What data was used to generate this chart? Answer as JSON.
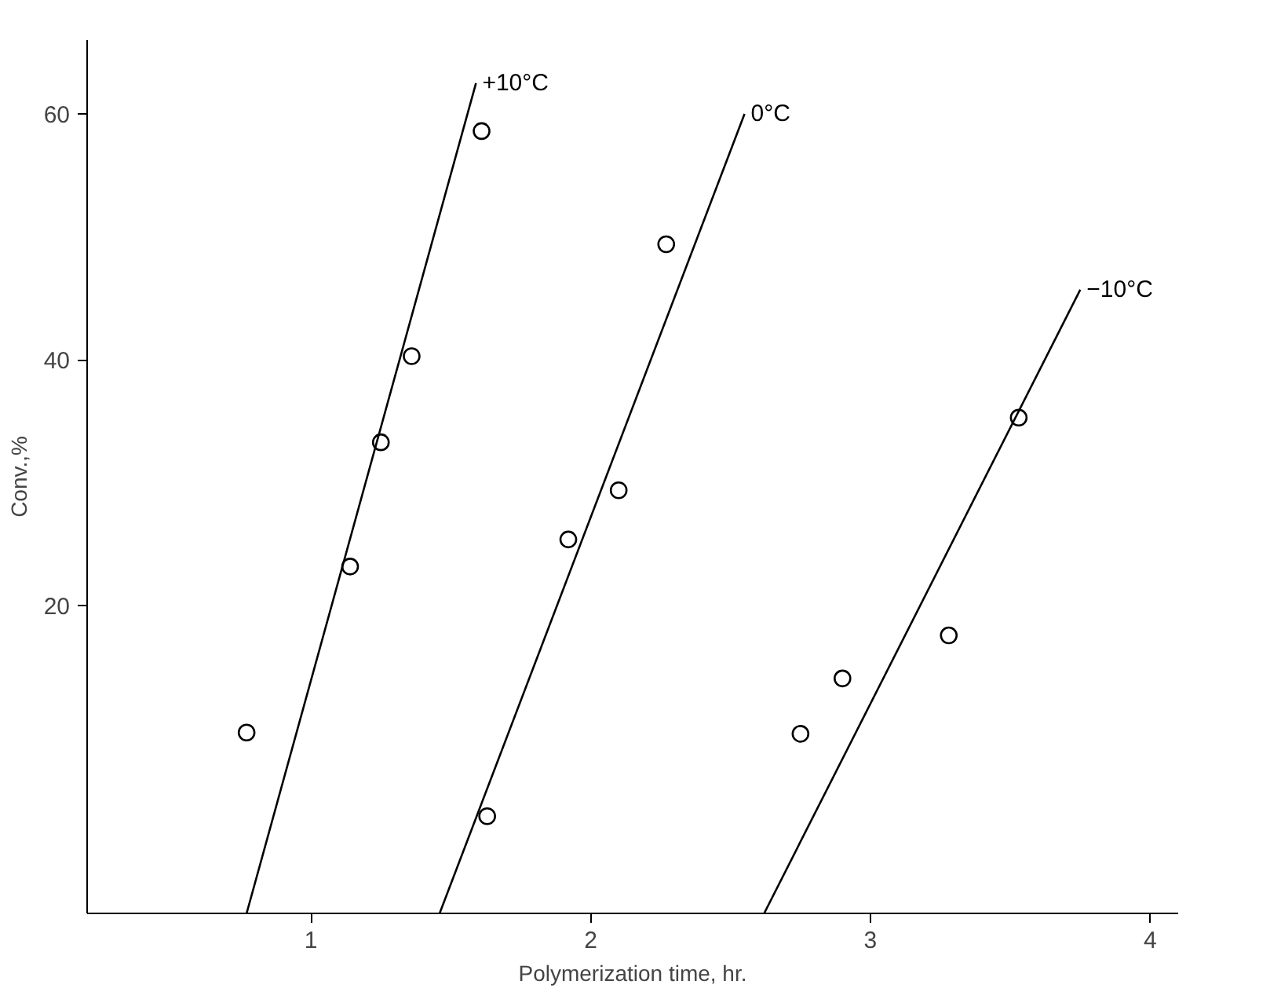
{
  "chart_data": {
    "type": "scatter",
    "xlabel": "Polymerization time, hr.",
    "ylabel": "Conv.,%",
    "xlim": [
      0.2,
      4.1
    ],
    "ylim": [
      -5,
      66
    ],
    "xticks": [
      1,
      2,
      3,
      4
    ],
    "yticks": [
      20,
      40,
      60
    ],
    "grid": false,
    "series": [
      {
        "color": "#000000",
        "marker": "circle",
        "x": [
          0.77,
          1.14,
          1.25,
          1.36,
          1.61
        ],
        "values": [
          9.7,
          23.2,
          33.3,
          40.3,
          58.6
        ]
      },
      {
        "color": "#000000",
        "marker": "circle",
        "x": [
          1.63,
          1.92,
          2.1,
          2.27
        ],
        "values": [
          2.9,
          25.4,
          29.4,
          49.4
        ]
      },
      {
        "color": "#000000",
        "marker": "circle",
        "x": [
          2.75,
          2.9,
          3.28,
          3.53
        ],
        "values": [
          9.6,
          14.1,
          17.6,
          35.3
        ]
      },
      {
        "type": "line",
        "color": "#000000",
        "x": [
          0.77,
          1.59
        ],
        "values": [
          -5,
          62.5
        ]
      },
      {
        "type": "line",
        "color": "#000000",
        "x": [
          1.46,
          2.55
        ],
        "values": [
          -5,
          60
        ]
      },
      {
        "type": "line",
        "color": "#000000",
        "x": [
          2.62,
          3.75
        ],
        "values": [
          -5,
          45.7
        ]
      }
    ],
    "annotations": [
      "+10°C",
      "0°C",
      "−10°C"
    ]
  }
}
